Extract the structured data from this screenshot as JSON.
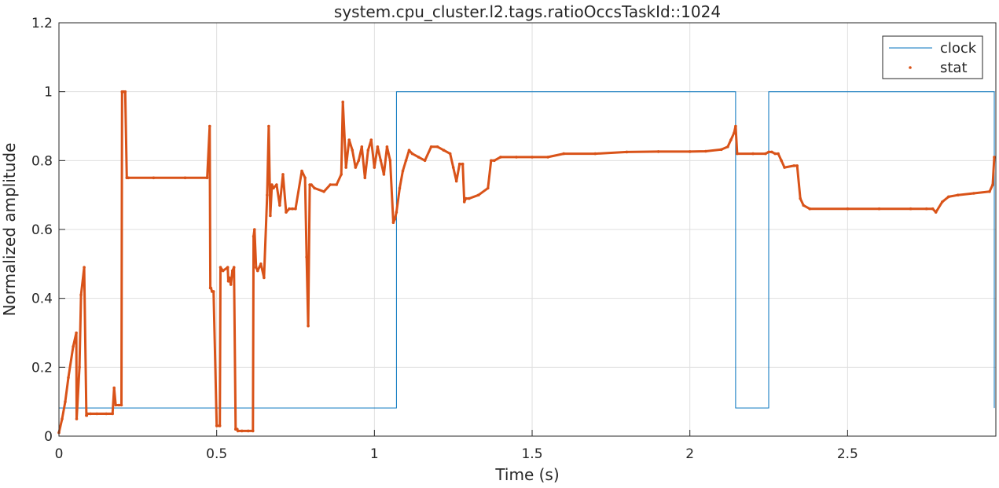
{
  "chart_data": {
    "type": "line",
    "title": "system.cpu_cluster.l2.tags.ratioOccsTaskId::1024",
    "xlabel": "Time (s)",
    "ylabel": "Normalized amplitude",
    "xlim": [
      0,
      2.97
    ],
    "ylim": [
      0,
      1.2
    ],
    "grid": true,
    "legend_placement": "top-right",
    "x_ticks": [
      0,
      0.5,
      1,
      1.5,
      2,
      2.5
    ],
    "x_tick_labels": [
      "0",
      "0.5",
      "1",
      "1.5",
      "2",
      "2.5"
    ],
    "y_ticks": [
      0,
      0.2,
      0.4,
      0.6,
      0.8,
      1,
      1.2
    ],
    "y_tick_labels": [
      "0",
      "0.2",
      "0.4",
      "0.6",
      "0.8",
      "1",
      "1.2"
    ],
    "series": [
      {
        "name": "clock",
        "style": "line",
        "color": "#0072BD",
        "x": [
          0,
          1.07,
          1.07,
          2.145,
          2.145,
          2.25,
          2.25,
          2.965,
          2.965
        ],
        "y": [
          0.082,
          0.082,
          1,
          1,
          0.082,
          0.082,
          1,
          1,
          0.082
        ]
      },
      {
        "name": "stat",
        "style": "dots",
        "color": "#D95319",
        "x": [
          0.0,
          0.01,
          0.02,
          0.03,
          0.045,
          0.055,
          0.056,
          0.065,
          0.07,
          0.08,
          0.087,
          0.088,
          0.09,
          0.1,
          0.12,
          0.15,
          0.17,
          0.175,
          0.18,
          0.19,
          0.198,
          0.2,
          0.205,
          0.21,
          0.215,
          0.22,
          0.3,
          0.4,
          0.47,
          0.478,
          0.48,
          0.482,
          0.485,
          0.49,
          0.5,
          0.51,
          0.512,
          0.52,
          0.535,
          0.537,
          0.54,
          0.545,
          0.55,
          0.555,
          0.56,
          0.565,
          0.567,
          0.58,
          0.6,
          0.615,
          0.617,
          0.62,
          0.625,
          0.63,
          0.64,
          0.65,
          0.66,
          0.665,
          0.67,
          0.675,
          0.68,
          0.69,
          0.7,
          0.71,
          0.72,
          0.73,
          0.74,
          0.75,
          0.77,
          0.78,
          0.785,
          0.79,
          0.795,
          0.8,
          0.81,
          0.84,
          0.86,
          0.88,
          0.895,
          0.9,
          0.91,
          0.92,
          0.93,
          0.94,
          0.95,
          0.96,
          0.97,
          0.98,
          0.99,
          1.0,
          1.01,
          1.02,
          1.03,
          1.04,
          1.05,
          1.06,
          1.065,
          1.07,
          1.08,
          1.09,
          1.1,
          1.11,
          1.12,
          1.14,
          1.16,
          1.18,
          1.2,
          1.22,
          1.24,
          1.25,
          1.26,
          1.27,
          1.28,
          1.285,
          1.29,
          1.3,
          1.33,
          1.36,
          1.37,
          1.38,
          1.4,
          1.45,
          1.5,
          1.55,
          1.6,
          1.7,
          1.8,
          1.9,
          2.0,
          2.05,
          2.1,
          2.12,
          2.13,
          2.14,
          2.145,
          2.15,
          2.2,
          2.24,
          2.25,
          2.26,
          2.27,
          2.28,
          2.29,
          2.3,
          2.33,
          2.34,
          2.35,
          2.36,
          2.38,
          2.5,
          2.6,
          2.7,
          2.75,
          2.77,
          2.78,
          2.8,
          2.82,
          2.85,
          2.9,
          2.95,
          2.96,
          2.965
        ],
        "y": [
          0.01,
          0.05,
          0.1,
          0.17,
          0.26,
          0.3,
          0.05,
          0.2,
          0.41,
          0.49,
          0.06,
          0.06,
          0.065,
          0.065,
          0.065,
          0.065,
          0.065,
          0.14,
          0.09,
          0.09,
          0.09,
          1.0,
          1.0,
          1.0,
          0.75,
          0.75,
          0.75,
          0.75,
          0.75,
          0.9,
          0.43,
          0.43,
          0.42,
          0.42,
          0.03,
          0.03,
          0.49,
          0.48,
          0.49,
          0.45,
          0.46,
          0.44,
          0.48,
          0.49,
          0.02,
          0.02,
          0.015,
          0.015,
          0.015,
          0.015,
          0.58,
          0.6,
          0.49,
          0.48,
          0.5,
          0.46,
          0.7,
          0.9,
          0.64,
          0.73,
          0.72,
          0.73,
          0.67,
          0.76,
          0.65,
          0.66,
          0.66,
          0.66,
          0.77,
          0.75,
          0.52,
          0.32,
          0.73,
          0.73,
          0.72,
          0.71,
          0.73,
          0.73,
          0.76,
          0.97,
          0.78,
          0.86,
          0.83,
          0.78,
          0.8,
          0.84,
          0.75,
          0.83,
          0.86,
          0.78,
          0.84,
          0.8,
          0.76,
          0.84,
          0.8,
          0.62,
          0.63,
          0.65,
          0.72,
          0.77,
          0.8,
          0.83,
          0.82,
          0.81,
          0.8,
          0.84,
          0.84,
          0.83,
          0.82,
          0.78,
          0.74,
          0.79,
          0.79,
          0.68,
          0.69,
          0.69,
          0.7,
          0.72,
          0.8,
          0.8,
          0.81,
          0.81,
          0.81,
          0.81,
          0.82,
          0.82,
          0.825,
          0.826,
          0.826,
          0.827,
          0.832,
          0.84,
          0.86,
          0.88,
          0.9,
          0.82,
          0.82,
          0.82,
          0.825,
          0.825,
          0.82,
          0.82,
          0.8,
          0.78,
          0.785,
          0.785,
          0.69,
          0.67,
          0.66,
          0.66,
          0.66,
          0.66,
          0.66,
          0.66,
          0.65,
          0.68,
          0.695,
          0.7,
          0.705,
          0.71,
          0.73,
          0.81
        ]
      }
    ]
  }
}
